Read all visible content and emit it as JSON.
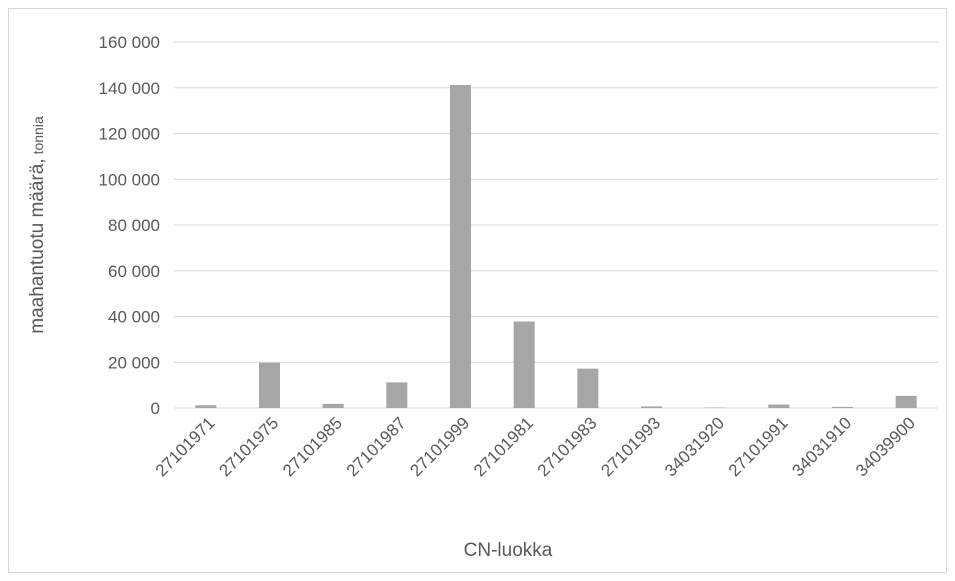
{
  "chart_data": {
    "type": "bar",
    "categories": [
      "27101971",
      "27101975",
      "27101985",
      "27101987",
      "27101999",
      "27101981",
      "27101983",
      "27101993",
      "34031920",
      "27101991",
      "34031910",
      "34039900"
    ],
    "values": [
      1200,
      19800,
      1800,
      11200,
      141200,
      37800,
      17200,
      700,
      200,
      1500,
      500,
      5300
    ],
    "xlabel": "CN-luokka",
    "ylabel": "maahantuotu määrä,",
    "ylabel_unit": "tonnia",
    "ylim": [
      0,
      160000
    ],
    "yticks": [
      0,
      20000,
      40000,
      60000,
      80000,
      100000,
      120000,
      140000,
      160000
    ],
    "ytick_labels": [
      "0",
      "20 000",
      "40 000",
      "60 000",
      "80 000",
      "100 000",
      "120 000",
      "140 000",
      "160 000"
    ],
    "grid": true,
    "colors": {
      "bar": "#a6a6a6",
      "grid": "#d9d9d9",
      "text": "#595959"
    }
  }
}
